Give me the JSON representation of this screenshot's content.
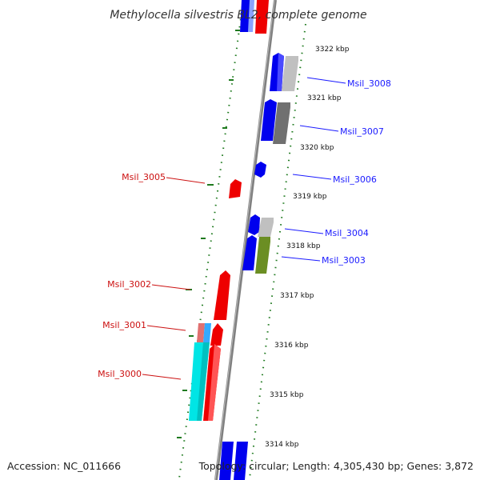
{
  "title": "Methylocella silvestris BL2, complete genome",
  "accession": "Accession: NC_011666",
  "summary": "Topology: circular; Length: 4,305,430 bp; Genes: 3,872",
  "colors": {
    "backbone": "#808080",
    "tick_marks": "#1f7a1f",
    "forward_label": "#1a1aff",
    "reverse_label": "#cc1111",
    "gene_blue": "#0000ee",
    "gene_red": "#ee0000",
    "gene_cyan": "#00e5e5",
    "gene_olive": "#6b8e23",
    "gene_light_gray": "#c0c0c0",
    "gene_dark_gray": "#707070"
  },
  "scale_ticks": [
    "3322 kbp",
    "3321 kbp",
    "3320 kbp",
    "3319 kbp",
    "3318 kbp",
    "3317 kbp",
    "3316 kbp",
    "3315 kbp",
    "3314 kbp"
  ],
  "gene_labels": {
    "forward": [
      "Msil_3008",
      "Msil_3007",
      "Msil_3006",
      "Msil_3004",
      "Msil_3003"
    ],
    "reverse": [
      "Msil_3005",
      "Msil_3002",
      "Msil_3001",
      "Msil_3000"
    ]
  }
}
